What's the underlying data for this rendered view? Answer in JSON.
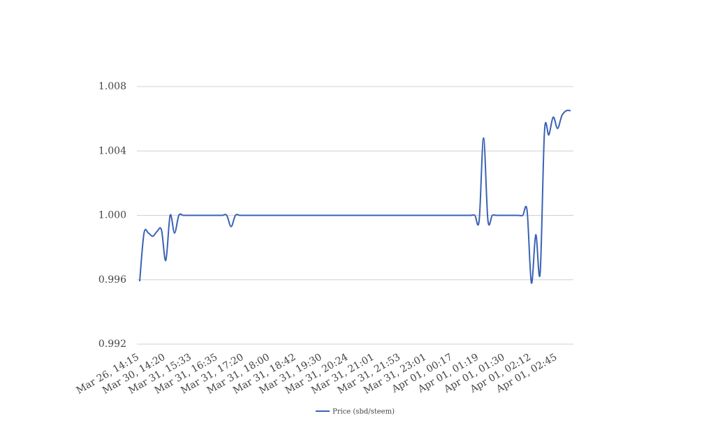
{
  "chart_data": {
    "type": "line",
    "categories": [
      "Mar 26, 14:15",
      null,
      null,
      null,
      null,
      null,
      "Mar 30, 14:20",
      null,
      null,
      null,
      null,
      null,
      "Mar 31, 15:33",
      null,
      null,
      null,
      null,
      null,
      "Mar 31, 16:35",
      null,
      null,
      null,
      null,
      null,
      "Mar 31, 17:20",
      null,
      null,
      null,
      null,
      null,
      "Mar 31, 18:00",
      null,
      null,
      null,
      null,
      null,
      "Mar 31, 18:42",
      null,
      null,
      null,
      null,
      null,
      "Mar 31, 19:30",
      null,
      null,
      null,
      null,
      null,
      "Mar 31, 20:24",
      null,
      null,
      null,
      null,
      null,
      "Mar 31, 21:01",
      null,
      null,
      null,
      null,
      null,
      "Mar 31, 21:53",
      null,
      null,
      null,
      null,
      null,
      "Mar 31, 23:01",
      null,
      null,
      null,
      null,
      null,
      "Apr 01, 00:17",
      null,
      null,
      null,
      null,
      null,
      "Apr 01, 01:19",
      null,
      null,
      null,
      null,
      null,
      "Apr 01, 01:30",
      null,
      null,
      null,
      null,
      null,
      "Apr 01, 02:12",
      null,
      null,
      null,
      null,
      null,
      "Apr 01, 02:45",
      null,
      null,
      null
    ],
    "series": [
      {
        "name": "Price (sbd/steem)",
        "color": "#3a62b4",
        "values": [
          0.9959,
          0.9989,
          0.9989,
          0.9987,
          0.999,
          0.9991,
          0.9972,
          1,
          0.9989,
          1,
          1,
          1,
          1,
          1,
          1,
          1,
          1,
          1,
          1,
          1,
          1,
          0.9993,
          1,
          1,
          1,
          1,
          1,
          1,
          1,
          1,
          1,
          1,
          1,
          1,
          1,
          1,
          1,
          1,
          1,
          1,
          1,
          1,
          1,
          1,
          1,
          1,
          1,
          1,
          1,
          1,
          1,
          1,
          1,
          1,
          1,
          1,
          1,
          1,
          1,
          1,
          1,
          1,
          1,
          1,
          1,
          1,
          1,
          1,
          1,
          1,
          1,
          1,
          1,
          1,
          1,
          1,
          1,
          1,
          0.9997,
          1.0048,
          0.9997,
          1,
          1,
          1,
          1,
          1,
          1,
          1,
          1,
          1.0003,
          0.9958,
          0.9988,
          0.9964,
          1.0052,
          1.005,
          1.0061,
          1.0054,
          1.0062,
          1.0065,
          1.0065
        ]
      }
    ],
    "ylim": [
      0.992,
      1.008
    ],
    "yticks": [
      0.992,
      0.996,
      {
        "value": 1,
        "label": "1.000"
      },
      1.004,
      1.008
    ],
    "grid": true,
    "legend": "bottom"
  }
}
